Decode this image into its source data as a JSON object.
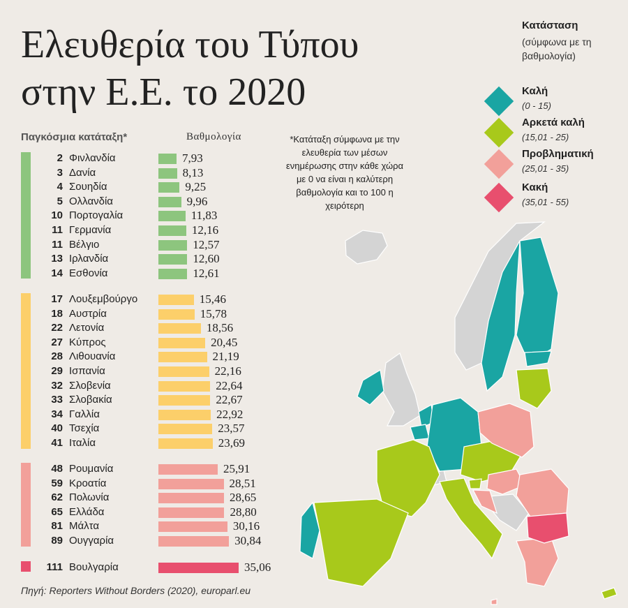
{
  "title_line1": "Ελευθερία του Τύπου",
  "title_line2": "στην Ε.Ε. το 2020",
  "header_rank": "Παγκόσμια κατάταξη*",
  "header_score": "Βαθμολογία",
  "note": "*Κατάταξη σύμφωνα με την ελευθερία των μέσων ενημέρωσης στην κάθε χώρα με 0 να είναι η καλύτερη βαθμολογία και το 100 η χειρότερη",
  "legend": {
    "title": "Κατάσταση",
    "subtitle": "(σύμφωνα με τη βαθμολογία)",
    "items": [
      {
        "label": "Καλή",
        "range": "(0 - 15)",
        "color": "#1aa5a3"
      },
      {
        "label": "Αρκετά καλή",
        "range": "(15,01 - 25)",
        "color": "#a8c91b"
      },
      {
        "label": "Προβληματική",
        "range": "(25,01 - 35)",
        "color": "#f2a09a"
      },
      {
        "label": "Κακή",
        "range": "(35,01 - 55)",
        "color": "#e84f6e"
      }
    ]
  },
  "source": "Πηγή: Reporters Without Borders (2020), europarl.eu",
  "chart_data": {
    "type": "bar",
    "orientation": "horizontal",
    "groups": [
      {
        "status": "Καλή",
        "bar_color": "#8dc57e",
        "rows": [
          {
            "rank": "2",
            "country": "Φινλανδία",
            "score": 7.93,
            "label": "7,93"
          },
          {
            "rank": "3",
            "country": "Δανία",
            "score": 8.13,
            "label": "8,13"
          },
          {
            "rank": "4",
            "country": "Σουηδία",
            "score": 9.25,
            "label": "9,25"
          },
          {
            "rank": "5",
            "country": "Ολλανδία",
            "score": 9.96,
            "label": "9,96"
          },
          {
            "rank": "10",
            "country": "Πορτογαλία",
            "score": 11.83,
            "label": "11,83"
          },
          {
            "rank": "11",
            "country": "Γερμανία",
            "score": 12.16,
            "label": "12,16"
          },
          {
            "rank": "11",
            "country": "Βέλγιο",
            "score": 12.57,
            "label": "12,57"
          },
          {
            "rank": "13",
            "country": "Ιρλανδία",
            "score": 12.6,
            "label": "12,60"
          },
          {
            "rank": "14",
            "country": "Εσθονία",
            "score": 12.61,
            "label": "12,61"
          }
        ]
      },
      {
        "status": "Αρκετά καλή",
        "bar_color": "#fccf6a",
        "rows": [
          {
            "rank": "17",
            "country": "Λουξεμβούργο",
            "score": 15.46,
            "label": "15,46"
          },
          {
            "rank": "18",
            "country": "Αυστρία",
            "score": 15.78,
            "label": "15,78"
          },
          {
            "rank": "22",
            "country": "Λετονία",
            "score": 18.56,
            "label": "18,56"
          },
          {
            "rank": "27",
            "country": "Κύπρος",
            "score": 20.45,
            "label": "20,45"
          },
          {
            "rank": "28",
            "country": "Λιθουανία",
            "score": 21.19,
            "label": "21,19"
          },
          {
            "rank": "29",
            "country": "Ισπανία",
            "score": 22.16,
            "label": "22,16"
          },
          {
            "rank": "32",
            "country": "Σλοβενία",
            "score": 22.64,
            "label": "22,64"
          },
          {
            "rank": "33",
            "country": "Σλοβακία",
            "score": 22.67,
            "label": "22,67"
          },
          {
            "rank": "34",
            "country": "Γαλλία",
            "score": 22.92,
            "label": "22,92"
          },
          {
            "rank": "40",
            "country": "Τσεχία",
            "score": 23.57,
            "label": "23,57"
          },
          {
            "rank": "41",
            "country": "Ιταλία",
            "score": 23.69,
            "label": "23,69"
          }
        ]
      },
      {
        "status": "Προβληματική",
        "bar_color": "#f2a09a",
        "rows": [
          {
            "rank": "48",
            "country": "Ρουμανία",
            "score": 25.91,
            "label": "25,91"
          },
          {
            "rank": "59",
            "country": "Κροατία",
            "score": 28.51,
            "label": "28,51"
          },
          {
            "rank": "62",
            "country": "Πολωνία",
            "score": 28.65,
            "label": "28,65"
          },
          {
            "rank": "65",
            "country": "Ελλάδα",
            "score": 28.8,
            "label": "28,80"
          },
          {
            "rank": "81",
            "country": "Μάλτα",
            "score": 30.16,
            "label": "30,16"
          },
          {
            "rank": "89",
            "country": "Ουγγαρία",
            "score": 30.84,
            "label": "30,84"
          }
        ]
      },
      {
        "status": "Κακή",
        "bar_color": "#e84f6e",
        "rows": [
          {
            "rank": "111",
            "country": "Βουλγαρία",
            "score": 35.06,
            "label": "35,06"
          }
        ]
      }
    ],
    "xlim": [
      0,
      35.06
    ]
  },
  "map_colors": {
    "good": "#1aa5a3",
    "fair": "#a8c91b",
    "problem": "#f2a09a",
    "bad": "#e84f6e",
    "non_eu": "#d4d4d4",
    "border": "#ffffff"
  }
}
